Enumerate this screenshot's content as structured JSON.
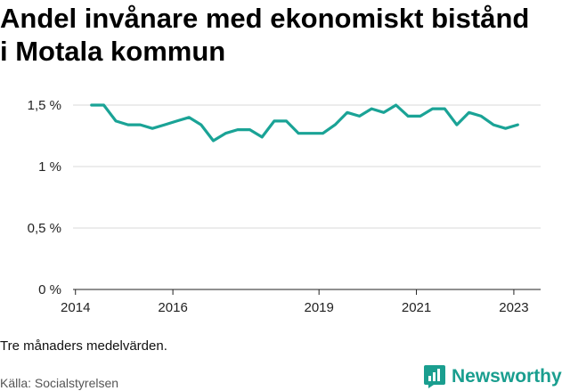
{
  "title": "Andel invånare med ekonomiskt bistånd i Motala kommun",
  "note": "Tre månaders medelvärden.",
  "source": "Källa: Socialstyrelsen",
  "brand": "Newsworthy",
  "colors": {
    "line": "#1aa396",
    "grid": "#d9d9d9",
    "brand": "#1a9e8f"
  },
  "chart_data": {
    "type": "line",
    "title": "Andel invånare med ekonomiskt bistånd i Motala kommun",
    "xlabel": "",
    "ylabel": "",
    "ylim": [
      0,
      1.5
    ],
    "xlim": [
      2013.95,
      2023.55
    ],
    "grid": true,
    "y_ticks": [
      {
        "value": 0,
        "label": "0 %"
      },
      {
        "value": 0.5,
        "label": "0,5 %"
      },
      {
        "value": 1,
        "label": "1 %"
      },
      {
        "value": 1.5,
        "label": "1,5 %"
      }
    ],
    "x_ticks": [
      {
        "value": 2014,
        "label": "2014"
      },
      {
        "value": 2016,
        "label": "2016"
      },
      {
        "value": 2019,
        "label": "2019"
      },
      {
        "value": 2021,
        "label": "2021"
      },
      {
        "value": 2023,
        "label": "2023"
      }
    ],
    "series": [
      {
        "x": [
          2014.33,
          2014.58,
          2014.83,
          2015.08,
          2015.33,
          2015.58,
          2015.83,
          2016.08,
          2016.33,
          2016.58,
          2016.83,
          2017.08,
          2017.33,
          2017.58,
          2017.83,
          2018.08,
          2018.33,
          2018.58,
          2018.83,
          2019.08,
          2019.33,
          2019.58,
          2019.83,
          2020.08,
          2020.33,
          2020.58,
          2020.83,
          2021.08,
          2021.33,
          2021.58,
          2021.83,
          2022.08,
          2022.33,
          2022.58,
          2022.83,
          2023.08
        ],
        "y": [
          1.5,
          1.5,
          1.37,
          1.34,
          1.34,
          1.31,
          1.34,
          1.37,
          1.4,
          1.34,
          1.21,
          1.27,
          1.3,
          1.3,
          1.24,
          1.37,
          1.37,
          1.27,
          1.27,
          1.27,
          1.34,
          1.44,
          1.41,
          1.47,
          1.44,
          1.5,
          1.41,
          1.41,
          1.47,
          1.47,
          1.34,
          1.44,
          1.41,
          1.34,
          1.31,
          1.34
        ]
      }
    ]
  }
}
